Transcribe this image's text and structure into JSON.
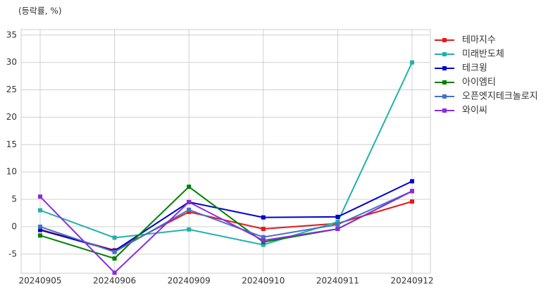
{
  "chart_data": {
    "type": "line",
    "y_label": "(등락률, %)",
    "categories": [
      "20240905",
      "20240906",
      "20240909",
      "20240910",
      "20240911",
      "20240912"
    ],
    "series": [
      {
        "name": "테마지수",
        "color": "#e31a1c",
        "values": [
          -0.5,
          -4.3,
          2.7,
          -0.4,
          0.6,
          4.6
        ]
      },
      {
        "name": "미래반도체",
        "color": "#20b2aa",
        "values": [
          3.0,
          -2.0,
          -0.5,
          -3.3,
          0.9,
          30.0
        ]
      },
      {
        "name": "테크윙",
        "color": "#0000cd",
        "values": [
          -0.6,
          -4.4,
          4.5,
          1.7,
          1.8,
          8.3
        ]
      },
      {
        "name": "아이엠티",
        "color": "#008000",
        "values": [
          -1.6,
          -5.8,
          7.3,
          -2.8,
          -0.4,
          6.5
        ]
      },
      {
        "name": "오픈엣지테크놀로지",
        "color": "#4472c4",
        "values": [
          0.0,
          -4.6,
          3.1,
          -1.9,
          0.4,
          6.5
        ]
      },
      {
        "name": "와이씨",
        "color": "#8a2be2",
        "values": [
          5.5,
          -8.4,
          4.5,
          -2.5,
          -0.4,
          6.5
        ]
      }
    ],
    "ylim": [
      -8.5,
      36
    ],
    "yticks": [
      -5,
      0,
      5,
      10,
      15,
      20,
      25,
      30,
      35
    ],
    "grid": true,
    "legend": "right"
  }
}
